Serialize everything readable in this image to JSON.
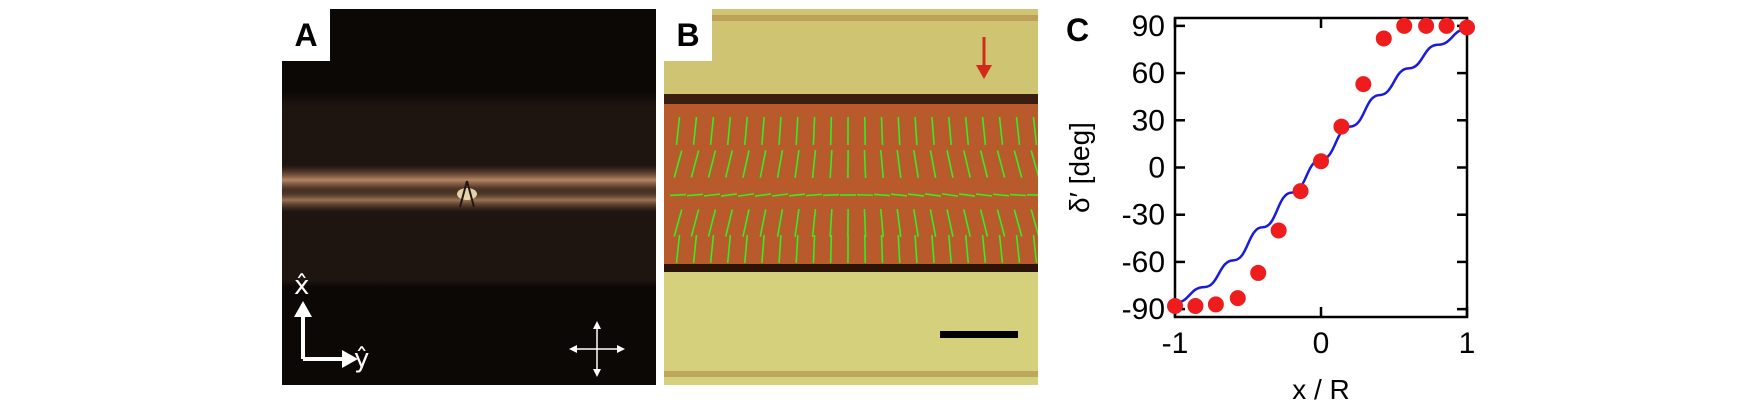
{
  "panels": {
    "a": {
      "letter": "A",
      "x_axis_label": "x̂",
      "y_axis_label": "ŷ"
    },
    "b": {
      "letter": "B"
    },
    "c": {
      "letter": "C"
    }
  },
  "colors": {
    "points": "#ee1c1c",
    "fit_line": "#1a1adc",
    "director_lines": "#33ee22",
    "arrow": "#d22a1a"
  },
  "chart_data": {
    "type": "scatter",
    "xlabel": "x / R",
    "ylabel": "δ′ [deg]",
    "xlim": [
      -1,
      1
    ],
    "ylim": [
      -95,
      95
    ],
    "xticks": [
      -1,
      0,
      1
    ],
    "xtick_labels": [
      "-1",
      "0",
      "1"
    ],
    "yticks": [
      90,
      60,
      30,
      0,
      -30,
      -60,
      -90
    ],
    "ytick_labels": [
      "90",
      "60",
      "30",
      "0",
      "-30",
      "-60",
      "-90"
    ],
    "grid": false,
    "points": {
      "x": [
        -1.0,
        -0.86,
        -0.72,
        -0.57,
        -0.43,
        -0.29,
        -0.14,
        0.0,
        0.14,
        0.29,
        0.43,
        0.57,
        0.72,
        0.86,
        1.0
      ],
      "y": [
        -88,
        -88,
        -87,
        -83,
        -67,
        -40,
        -15,
        4,
        26,
        53,
        82,
        90,
        90,
        90,
        89
      ]
    },
    "fit_curve": {
      "x": [
        -1.0,
        -0.8,
        -0.6,
        -0.4,
        -0.2,
        0.0,
        0.2,
        0.4,
        0.6,
        0.8,
        1.0
      ],
      "y": [
        -86,
        -76,
        -59,
        -38,
        -16,
        5,
        26,
        46,
        63,
        78,
        88
      ]
    }
  }
}
